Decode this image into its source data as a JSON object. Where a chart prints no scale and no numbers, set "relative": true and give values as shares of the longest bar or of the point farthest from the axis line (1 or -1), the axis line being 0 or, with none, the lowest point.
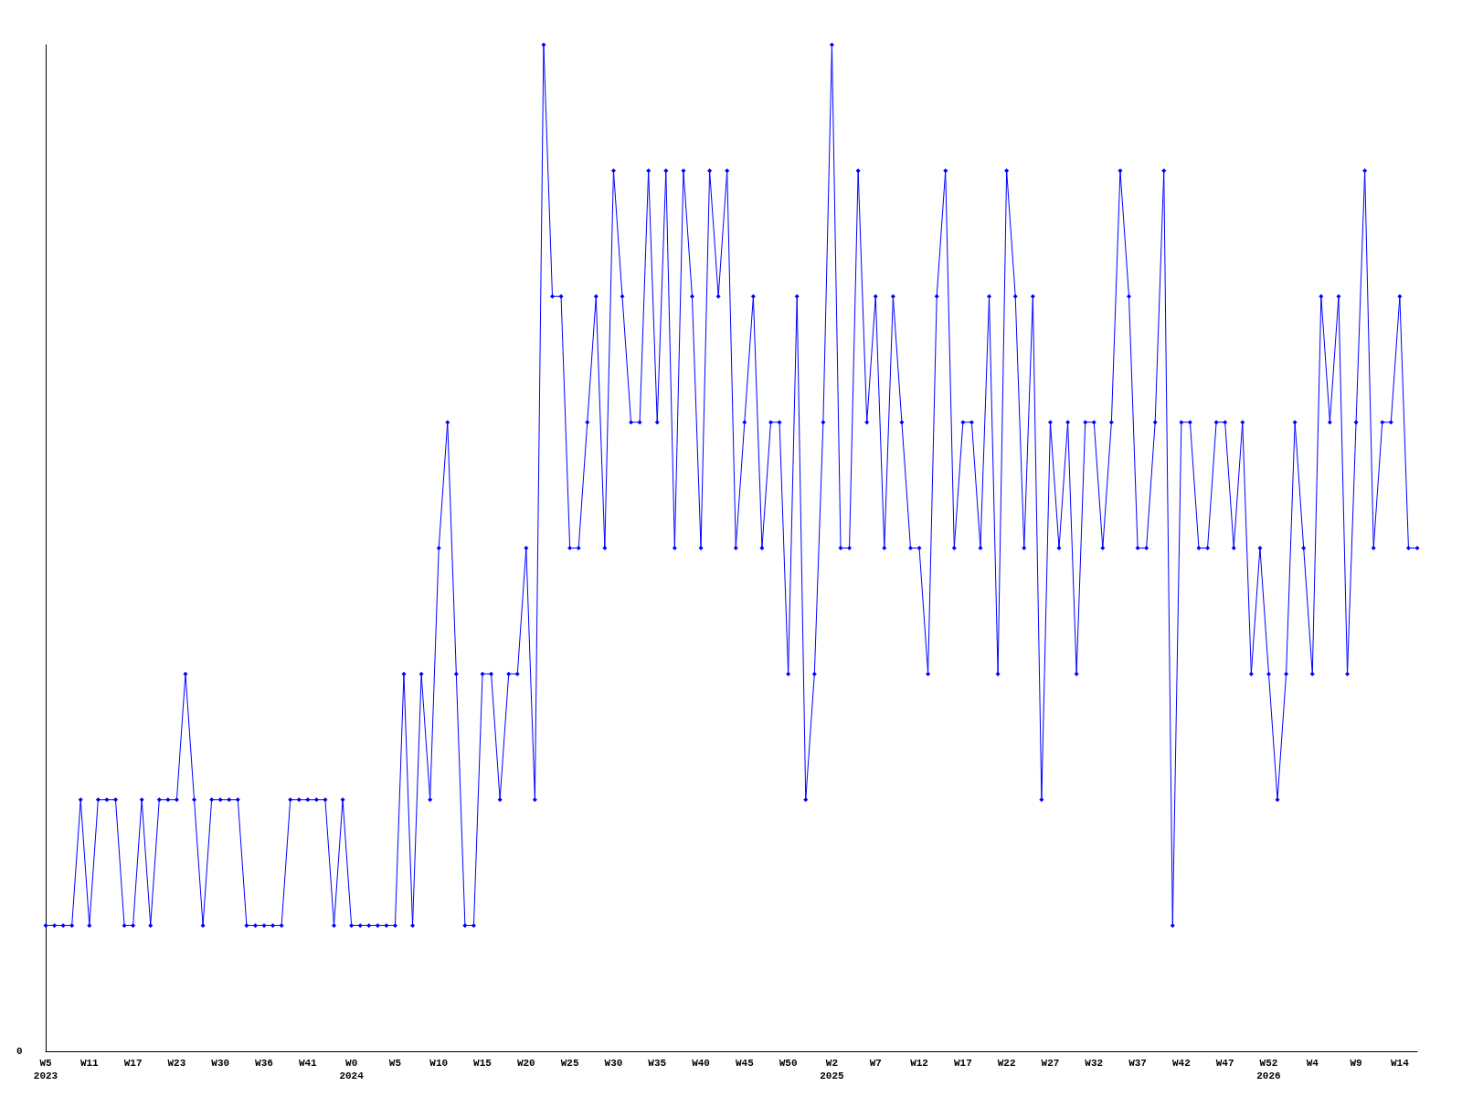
{
  "chart_data": {
    "type": "line",
    "relative": true,
    "marker": "diamond",
    "line_style": "solid",
    "grid": false,
    "annotations": [
      "0"
    ],
    "categories": [
      "W5\n2023",
      null,
      null,
      null,
      null,
      "W11",
      null,
      null,
      null,
      null,
      "W17",
      null,
      null,
      null,
      null,
      "W23",
      null,
      null,
      null,
      null,
      "W30",
      null,
      null,
      null,
      null,
      "W36",
      null,
      null,
      null,
      null,
      "W41",
      null,
      null,
      null,
      null,
      "W0\n2024",
      null,
      null,
      null,
      null,
      "W5",
      null,
      null,
      null,
      null,
      "W10",
      null,
      null,
      null,
      null,
      "W15",
      null,
      null,
      null,
      null,
      "W20",
      null,
      null,
      null,
      null,
      "W25",
      null,
      null,
      null,
      null,
      "W30",
      null,
      null,
      null,
      null,
      "W35",
      null,
      null,
      null,
      null,
      "W40",
      null,
      null,
      null,
      null,
      "W45",
      null,
      null,
      null,
      null,
      "W50",
      null,
      null,
      null,
      null,
      "W2\n2025",
      null,
      null,
      null,
      null,
      "W7",
      null,
      null,
      null,
      null,
      "W12",
      null,
      null,
      null,
      null,
      "W17",
      null,
      null,
      null,
      null,
      "W22",
      null,
      null,
      null,
      null,
      "W27",
      null,
      null,
      null,
      null,
      "W32",
      null,
      null,
      null,
      null,
      "W37",
      null,
      null,
      null,
      null,
      "W42",
      null,
      null,
      null,
      null,
      "W47",
      null,
      null,
      null,
      null,
      "W52\n2026",
      null,
      null,
      null,
      null,
      "W4",
      null,
      null,
      null,
      null,
      "W9",
      null,
      null,
      null,
      null,
      "W14",
      null,
      null
    ],
    "series": [
      {
        "color": "#0000ff",
        "values": [
          0.125,
          0.125,
          0.125,
          0.125,
          0.25,
          0.125,
          0.25,
          0.25,
          0.25,
          0.125,
          0.125,
          0.25,
          0.125,
          0.25,
          0.25,
          0.25,
          0.375,
          0.25,
          0.125,
          0.25,
          0.25,
          0.25,
          0.25,
          0.125,
          0.125,
          0.125,
          0.125,
          0.125,
          0.25,
          0.25,
          0.25,
          0.25,
          0.25,
          0.125,
          0.25,
          0.125,
          0.125,
          0.125,
          0.125,
          0.125,
          0.125,
          0.375,
          0.125,
          0.375,
          0.25,
          0.5,
          0.625,
          0.375,
          0.125,
          0.125,
          0.375,
          0.375,
          0.25,
          0.375,
          0.375,
          0.5,
          0.25,
          1,
          0.75,
          0.75,
          0.5,
          0.5,
          0.625,
          0.75,
          0.5,
          0.875,
          0.75,
          0.625,
          0.625,
          0.875,
          0.625,
          0.875,
          0.5,
          0.875,
          0.75,
          0.5,
          0.875,
          0.75,
          0.875,
          0.5,
          0.625,
          0.75,
          0.5,
          0.625,
          0.625,
          0.375,
          0.75,
          0.25,
          0.375,
          0.625,
          1,
          0.5,
          0.5,
          0.875,
          0.625,
          0.75,
          0.5,
          0.75,
          0.625,
          0.5,
          0.5,
          0.375,
          0.75,
          0.875,
          0.5,
          0.625,
          0.625,
          0.5,
          0.75,
          0.375,
          0.875,
          0.75,
          0.5,
          0.75,
          0.25,
          0.625,
          0.5,
          0.625,
          0.375,
          0.625,
          0.625,
          0.5,
          0.625,
          0.875,
          0.75,
          0.5,
          0.5,
          0.625,
          0.875,
          0.125,
          0.625,
          0.625,
          0.5,
          0.5,
          0.625,
          0.625,
          0.5,
          0.625,
          0.375,
          0.5,
          0.375,
          0.25,
          0.375,
          0.625,
          0.5,
          0.375,
          0.75,
          0.625,
          0.75,
          0.375,
          0.625,
          0.875,
          0.5,
          0.625,
          0.625,
          0.75,
          0.5,
          0.5
        ]
      }
    ]
  }
}
